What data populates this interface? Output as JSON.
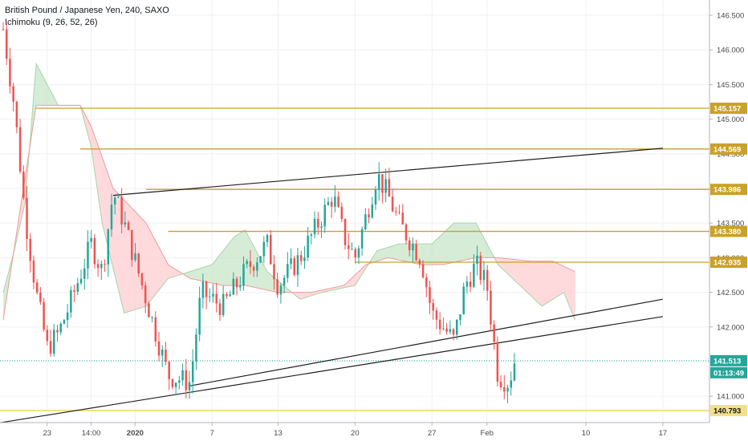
{
  "header": {
    "title": "British Pound / Japanese Yen, 240, SAXO",
    "indicator": "Ichimoku (9, 26, 52, 26)"
  },
  "colors": {
    "bull": "#26a69a",
    "bear": "#ef5350",
    "gold_line": "#c9a227",
    "light_gold_line": "#f3e08a",
    "trendline": "#1f1f1f",
    "cloud_green_fill": "#c8e6c9",
    "cloud_red_fill": "#ffcdd2",
    "cloud_green_line": "#a5d6a7",
    "cloud_red_line": "#ef9a9a",
    "last_price": "#26a69a",
    "grid": "#eef0f3"
  },
  "chart_data": {
    "type": "candlestick",
    "title": "British Pound / Japanese Yen, 240, SAXO",
    "indicator": "Ichimoku (9, 26, 52, 26)",
    "ylim": [
      140.62,
      146.72
    ],
    "y_ticks": [
      "146.500",
      "146.000",
      "145.500",
      "145.000",
      "144.500",
      "144.000",
      "143.500",
      "143.000",
      "142.500",
      "142.000",
      "141.500",
      "141.000"
    ],
    "x_ticks": [
      "23",
      "14:00",
      "2020",
      "7",
      "13",
      "20",
      "27",
      "Feb",
      "10",
      "17"
    ],
    "horizontal_levels": [
      145.157,
      144.569,
      143.986,
      143.38,
      142.935
    ],
    "support_level": 140.793,
    "last_price": "141.513",
    "countdown": "01:13:49",
    "trendlines": [
      {
        "from": [
          "Dec 29",
          143.9
        ],
        "to": [
          "Feb 17",
          144.58
        ]
      },
      {
        "from": [
          "Dec 18",
          140.6
        ],
        "to": [
          "Feb 17",
          142.15
        ]
      },
      {
        "from": [
          "Jan 5",
          141.15
        ],
        "to": [
          "Feb 17",
          142.4
        ]
      }
    ],
    "candles": {
      "bars": 152,
      "first_bar": "Dec 19",
      "ohlc_anchor_closes": [
        [
          "Dec 19",
          146.3
        ],
        [
          "Dec 20",
          145.2
        ],
        [
          "Dec 21",
          143.6
        ],
        [
          "Dec 22",
          142.5
        ],
        [
          "Dec 23",
          141.7
        ],
        [
          "Dec 24",
          141.9
        ],
        [
          "Dec 25",
          142.3
        ],
        [
          "Dec 27",
          143.2
        ],
        [
          "Dec 28",
          142.8
        ],
        [
          "Dec 29",
          143.95
        ],
        [
          "Dec 30",
          143.5
        ],
        [
          "Jan 1",
          142.4
        ],
        [
          "Jan 3",
          141.3
        ],
        [
          "Jan 5",
          141.2
        ],
        [
          "Jan 6",
          142.5
        ],
        [
          "Jan 8",
          142.3
        ],
        [
          "Jan 10",
          142.8
        ],
        [
          "Jan 12",
          143.2
        ],
        [
          "Jan 13",
          142.6
        ],
        [
          "Jan 15",
          143.0
        ],
        [
          "Jan 17",
          143.6
        ],
        [
          "Jan 18",
          143.9
        ],
        [
          "Jan 19",
          143.3
        ],
        [
          "Jan 20",
          143.0
        ],
        [
          "Jan 22",
          144.2
        ],
        [
          "Jan 23",
          143.9
        ],
        [
          "Jan 24",
          143.5
        ],
        [
          "Jan 26",
          143.0
        ],
        [
          "Jan 27",
          142.2
        ],
        [
          "Jan 29",
          141.8
        ],
        [
          "Jan 30",
          142.6
        ],
        [
          "Jan 31",
          142.9
        ],
        [
          "Feb 1",
          142.6
        ],
        [
          "Feb 2",
          141.3
        ],
        [
          "Feb 3",
          141.2
        ],
        [
          "Feb 3.5",
          141.51
        ]
      ]
    },
    "ichimoku_cloud": {
      "span_a": [
        [
          "Dec 19",
          142.5
        ],
        [
          "Dec 20",
          143.1
        ],
        [
          "Dec 21",
          143.8
        ],
        [
          "Dec 22",
          145.8
        ],
        [
          "Dec 24",
          145.2
        ],
        [
          "Dec 26",
          145.2
        ],
        [
          "Dec 27",
          144.6
        ],
        [
          "Dec 28",
          143.5
        ],
        [
          "Dec 30",
          142.2
        ],
        [
          "Jan 1",
          142.3
        ],
        [
          "Jan 3",
          142.7
        ],
        [
          "Jan 5",
          142.8
        ],
        [
          "Jan 7",
          142.9
        ],
        [
          "Jan 9",
          143.3
        ],
        [
          "Jan 10",
          143.4
        ],
        [
          "Jan 12",
          142.8
        ],
        [
          "Jan 15",
          142.4
        ],
        [
          "Jan 17",
          142.5
        ],
        [
          "Jan 20",
          142.6
        ],
        [
          "Jan 22",
          143.1
        ],
        [
          "Jan 24",
          143.2
        ],
        [
          "Jan 27",
          143.2
        ],
        [
          "Jan 29",
          143.5
        ],
        [
          "Jan 31",
          143.5
        ],
        [
          "Feb 2",
          142.9
        ],
        [
          "Feb 4",
          142.6
        ],
        [
          "Feb 6",
          142.3
        ],
        [
          "Feb 8",
          142.5
        ],
        [
          "Feb 9",
          142.1
        ]
      ],
      "span_b": [
        [
          "Dec 19",
          142.1
        ],
        [
          "Dec 22",
          145.2
        ],
        [
          "Dec 26",
          145.2
        ],
        [
          "Dec 27",
          144.9
        ],
        [
          "Dec 29",
          144.0
        ],
        [
          "Jan 1",
          143.5
        ],
        [
          "Jan 3",
          142.9
        ],
        [
          "Jan 5",
          142.7
        ],
        [
          "Jan 8",
          142.6
        ],
        [
          "Jan 10",
          142.6
        ],
        [
          "Jan 13",
          142.5
        ],
        [
          "Jan 16",
          142.5
        ],
        [
          "Jan 19",
          142.6
        ],
        [
          "Jan 21",
          142.9
        ],
        [
          "Jan 23",
          143.0
        ],
        [
          "Jan 26",
          142.9
        ],
        [
          "Jan 28",
          142.9
        ],
        [
          "Jan 31",
          143.0
        ],
        [
          "Feb 2",
          143.0
        ],
        [
          "Feb 5",
          142.95
        ],
        [
          "Feb 7",
          142.95
        ],
        [
          "Feb 9",
          142.8
        ]
      ]
    },
    "grid": true
  }
}
